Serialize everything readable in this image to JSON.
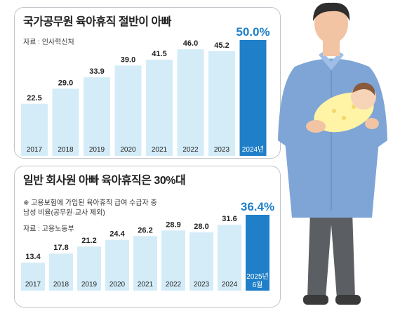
{
  "chart_data": [
    {
      "type": "bar",
      "title": "국가공무원 육아휴직 절반이 아빠",
      "source": "자료 : 인사혁신처",
      "categories": [
        "2017",
        "2018",
        "2019",
        "2020",
        "2021",
        "2022",
        "2023",
        "2024년"
      ],
      "values": [
        22.5,
        29.0,
        33.9,
        39.0,
        41.5,
        46.0,
        45.2,
        50.0
      ],
      "value_labels": [
        "22.5",
        "29.0",
        "33.9",
        "39.0",
        "41.5",
        "46.0",
        "45.2",
        "50.0%"
      ],
      "highlight_index": 7,
      "ylim": [
        0,
        50
      ],
      "xlabel": "",
      "ylabel": ""
    },
    {
      "type": "bar",
      "title": "일반 회사원 아빠 육아휴직은 30%대",
      "note_lines": [
        "※ 고용보험에 가입된 육아휴직 급여 수급자 중",
        "남성 비율(공무원·교사 제외)"
      ],
      "source": "자료 : 고용노동부",
      "categories": [
        "2017",
        "2018",
        "2019",
        "2020",
        "2021",
        "2022",
        "2023",
        "2024",
        "2025년 6월"
      ],
      "category_lines": [
        [
          "2017"
        ],
        [
          "2018"
        ],
        [
          "2019"
        ],
        [
          "2020"
        ],
        [
          "2021"
        ],
        [
          "2022"
        ],
        [
          "2023"
        ],
        [
          "2024"
        ],
        [
          "2025년",
          "6월"
        ]
      ],
      "values": [
        13.4,
        17.8,
        21.2,
        24.4,
        26.2,
        28.9,
        28.0,
        31.6,
        36.4
      ],
      "value_labels": [
        "13.4",
        "17.8",
        "21.2",
        "24.4",
        "26.2",
        "28.9",
        "28.0",
        "31.6",
        "36.4%"
      ],
      "highlight_index": 8,
      "ylim": [
        0,
        36.4
      ],
      "xlabel": "",
      "ylabel": ""
    }
  ],
  "colors": {
    "bar_light": "#d4ecf8",
    "bar_highlight": "#1f7fc8",
    "value_highlight": "#1f7fc8",
    "text": "#222222",
    "shirt": "#7ea5d6",
    "skin": "#f2c4a4",
    "hair": "#2e2e2e",
    "pants": "#5b5e63",
    "baby_wrap": "#fff3a6"
  },
  "illustration": "father-holding-baby-icon"
}
